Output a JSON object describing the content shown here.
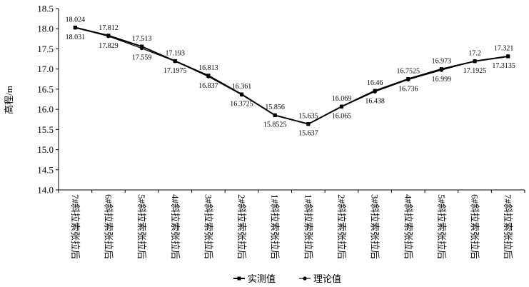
{
  "chart_data": {
    "type": "line",
    "title": "",
    "xlabel": "",
    "ylabel": "高程/m",
    "ylim": [
      14.0,
      18.5
    ],
    "yticks": [
      "14.0",
      "14.5",
      "15.0",
      "15.5",
      "16.0",
      "16.5",
      "17.0",
      "17.5",
      "18.0",
      "18.5"
    ],
    "categories": [
      "7#斜拉索张拉后",
      "6#斜拉索张拉后",
      "5#斜拉索张拉后",
      "4#斜拉索张拉后",
      "3#斜拉索张拉后",
      "2#斜拉索张拉后",
      "1#斜拉索张拉后",
      "1#斜拉索张拉后",
      "2#斜拉索张拉后",
      "3#斜拉索张拉后",
      "4#斜拉索张拉后",
      "5#斜拉索张拉后",
      "6#斜拉索张拉后",
      "7#斜拉索张拉后"
    ],
    "series": [
      {
        "name": "实测值",
        "marker": "square",
        "values": [
          18.031,
          17.829,
          17.559,
          17.1975,
          16.837,
          16.3725,
          15.8525,
          15.635,
          16.069,
          16.46,
          16.7525,
          16.999,
          17.1925,
          17.3135
        ],
        "labels": [
          "18.031",
          "17.829",
          "17.559",
          "17.1975",
          "16.837",
          "16.3725",
          "15.8525",
          "15.635",
          "16.069",
          "16.46",
          "16.7525",
          "16.999",
          "17.1925",
          "17.3135"
        ]
      },
      {
        "name": "理论值",
        "marker": "circle",
        "values": [
          18.024,
          17.812,
          17.513,
          17.193,
          16.813,
          16.361,
          15.856,
          15.637,
          16.065,
          16.438,
          16.736,
          16.973,
          17.2,
          17.321
        ],
        "labels": [
          "18.024",
          "17.812",
          "17.513",
          "17.193",
          "16.813",
          "16.361",
          "15.856",
          "15.637",
          "16.065",
          "16.438",
          "16.736",
          "16.973",
          "17.2",
          "17.321"
        ]
      }
    ],
    "legend_position": "bottom-center",
    "grid": false,
    "colors": {
      "line": "#000000",
      "axis": "#000000"
    }
  }
}
